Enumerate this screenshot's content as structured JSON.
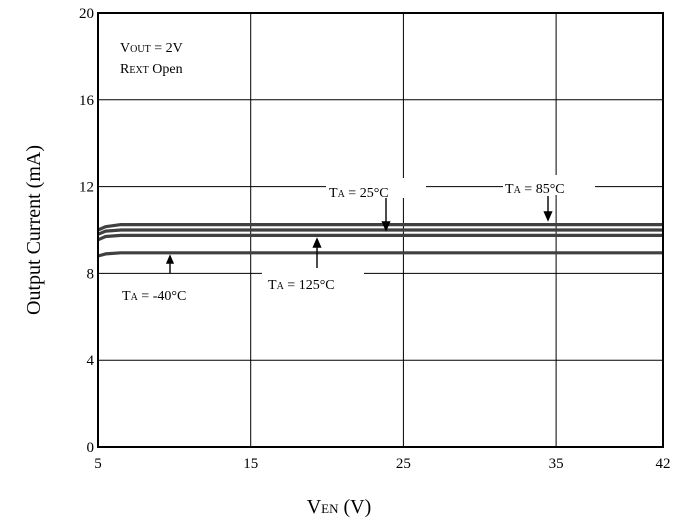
{
  "chart_data": {
    "type": "line",
    "xlabel": {
      "main": "V",
      "sub": "EN",
      "unit": " (V)"
    },
    "ylabel": "Output Current (mA)",
    "xlim": [
      5,
      42
    ],
    "ylim": [
      0,
      20
    ],
    "x_ticks": [
      5,
      15,
      25,
      35,
      42
    ],
    "y_ticks": [
      0,
      4,
      8,
      12,
      16,
      20
    ],
    "grid": true,
    "conditions": [
      {
        "main": "V",
        "sub": "OUT",
        "rest": " = 2V"
      },
      {
        "main": "R",
        "sub": "EXT",
        "rest": " Open"
      }
    ],
    "series": [
      {
        "name_parts": {
          "main": "T",
          "sub": "A",
          "rest": " = 85°C"
        },
        "x": [
          5,
          5.5,
          6.5,
          8,
          42
        ],
        "y": [
          10.0,
          10.15,
          10.25,
          10.25,
          10.25
        ]
      },
      {
        "name_parts": {
          "main": "T",
          "sub": "A",
          "rest": " = 25°C"
        },
        "x": [
          5,
          5.5,
          6.5,
          8,
          42
        ],
        "y": [
          9.8,
          9.95,
          10.0,
          10.0,
          10.0
        ]
      },
      {
        "name_parts": {
          "main": "T",
          "sub": "A",
          "rest": " = 125°C"
        },
        "x": [
          5,
          5.5,
          6.5,
          8,
          42
        ],
        "y": [
          9.55,
          9.7,
          9.75,
          9.75,
          9.75
        ]
      },
      {
        "name_parts": {
          "main": "T",
          "sub": "A",
          "rest": " = -40°C"
        },
        "x": [
          5,
          5.5,
          6.5,
          8,
          42
        ],
        "y": [
          8.8,
          8.9,
          8.95,
          8.95,
          8.95
        ]
      }
    ],
    "line_color": "#404040",
    "grid_color": "#000000"
  }
}
